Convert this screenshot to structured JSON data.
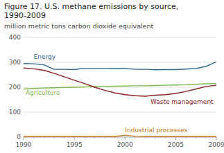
{
  "chart_data": {
    "type": "line",
    "title": "Figure 17. U.S. methane emissions by source,\n1990-2009",
    "subtitle": "million metric tons carbon dioxide equivalent",
    "x": [
      1990,
      1991,
      1992,
      1993,
      1994,
      1995,
      1996,
      1997,
      1998,
      1999,
      2000,
      2001,
      2002,
      2003,
      2004,
      2005,
      2006,
      2007,
      2008,
      2009
    ],
    "series": [
      {
        "color": "#2e6a8c",
        "values": [
          295,
          294,
          290,
          272,
          272,
          271,
          276,
          276,
          276,
          275,
          275,
          272,
          272,
          270,
          271,
          271,
          273,
          275,
          284,
          302
        ]
      },
      {
        "color": "#7ab648",
        "values": [
          193,
          195,
          197,
          198,
          199,
          200,
          201,
          202,
          203,
          204,
          205,
          206,
          206,
          207,
          208,
          209,
          210,
          212,
          214,
          215
        ]
      },
      {
        "color": "#8b2024",
        "values": [
          277,
          274,
          268,
          256,
          242,
          228,
          215,
          200,
          188,
          177,
          170,
          166,
          164,
          168,
          170,
          175,
          183,
          193,
          203,
          208
        ]
      },
      {
        "color": "#c87820",
        "values": [
          2,
          2,
          2,
          2,
          2,
          2,
          2,
          2,
          2,
          2,
          8,
          3,
          2,
          2,
          2,
          2,
          2,
          2,
          2,
          2
        ]
      }
    ],
    "annotations": [
      {
        "text": "Energy",
        "x": 1991.0,
        "y": 308,
        "color": "#2e6a8c"
      },
      {
        "text": "Agriculture",
        "x": 1990.2,
        "y": 186,
        "color": "#7ab648"
      },
      {
        "text": "Waste management",
        "x": 2002.5,
        "y": 152,
        "color": "#8b2024"
      },
      {
        "text": "Industrial processes",
        "x": 2000.0,
        "y": 14,
        "color": "#c87820"
      }
    ],
    "xlim": [
      1990,
      2009
    ],
    "xticks": [
      1990,
      1995,
      2000,
      2005,
      2009
    ],
    "ylim": [
      0,
      400
    ],
    "yticks": [
      0,
      100,
      200,
      300,
      400
    ],
    "grid": true
  }
}
